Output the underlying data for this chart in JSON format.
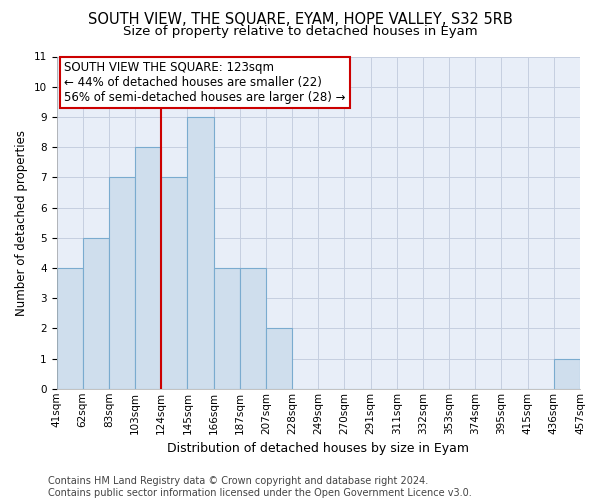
{
  "title": "SOUTH VIEW, THE SQUARE, EYAM, HOPE VALLEY, S32 5RB",
  "subtitle": "Size of property relative to detached houses in Eyam",
  "xlabel": "Distribution of detached houses by size in Eyam",
  "ylabel": "Number of detached properties",
  "bar_values": [
    4,
    5,
    7,
    8,
    7,
    9,
    4,
    4,
    2,
    0,
    0,
    0,
    0,
    0,
    0,
    0,
    0,
    0,
    0,
    1
  ],
  "x_labels": [
    "41sqm",
    "62sqm",
    "83sqm",
    "103sqm",
    "124sqm",
    "145sqm",
    "166sqm",
    "187sqm",
    "207sqm",
    "228sqm",
    "249sqm",
    "270sqm",
    "291sqm",
    "311sqm",
    "332sqm",
    "353sqm",
    "374sqm",
    "395sqm",
    "415sqm",
    "436sqm",
    "457sqm"
  ],
  "bar_color": "#cfdeed",
  "bar_edge_color": "#7aabcf",
  "grid_color": "#c5cfe0",
  "background_color": "#e8eef8",
  "vline_color": "#cc0000",
  "annotation_text": "SOUTH VIEW THE SQUARE: 123sqm\n← 44% of detached houses are smaller (22)\n56% of semi-detached houses are larger (28) →",
  "annotation_box_color": "#ffffff",
  "annotation_box_edge": "#cc0000",
  "ylim": [
    0,
    11
  ],
  "yticks": [
    0,
    1,
    2,
    3,
    4,
    5,
    6,
    7,
    8,
    9,
    10,
    11
  ],
  "footer_text": "Contains HM Land Registry data © Crown copyright and database right 2024.\nContains public sector information licensed under the Open Government Licence v3.0.",
  "title_fontsize": 10.5,
  "subtitle_fontsize": 9.5,
  "xlabel_fontsize": 9,
  "ylabel_fontsize": 8.5,
  "tick_fontsize": 7.5,
  "annotation_fontsize": 8.5,
  "footer_fontsize": 7
}
